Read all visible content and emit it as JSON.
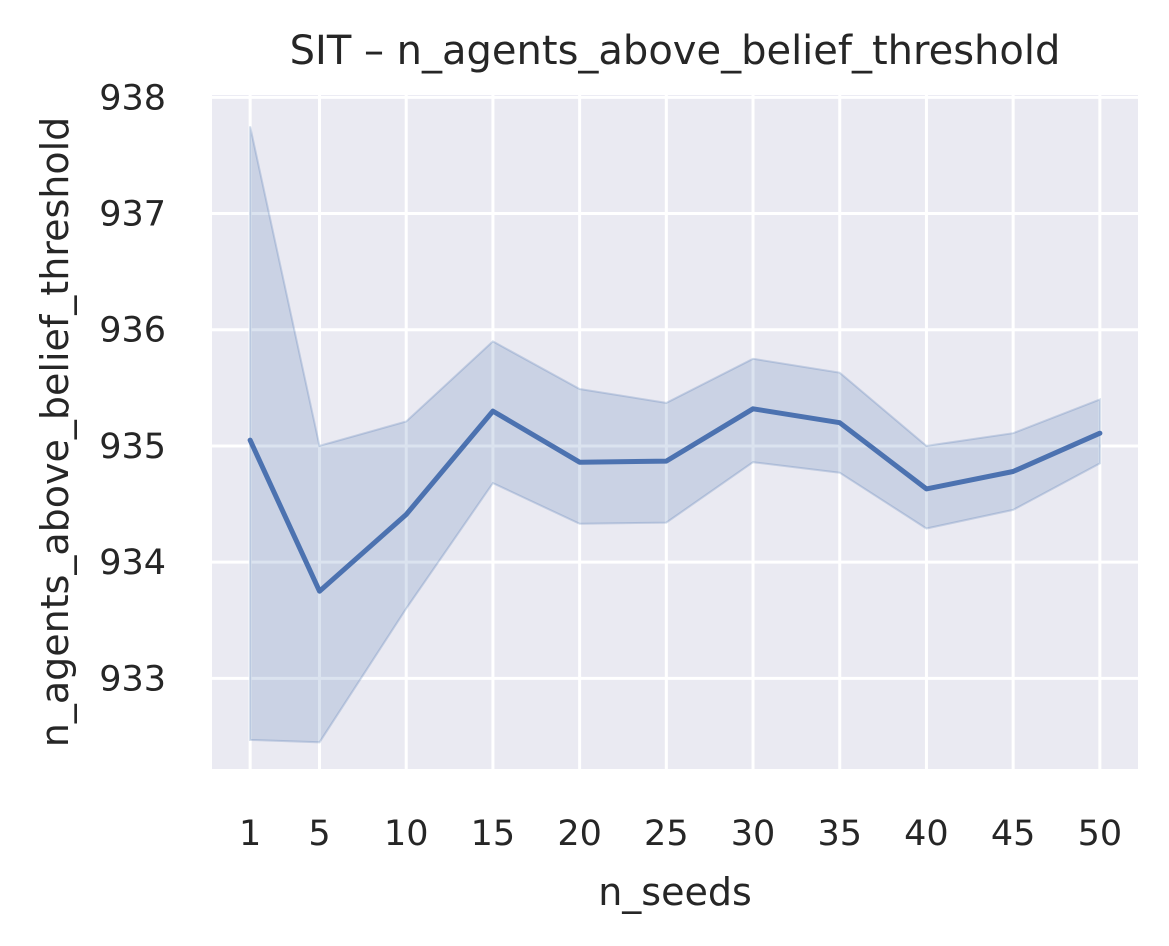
{
  "chart_data": {
    "type": "line",
    "title": "SIT – n_agents_above_belief_threshold",
    "xlabel": "n_seeds",
    "ylabel": "n_agents_above_belief_threshold",
    "x": [
      1,
      5,
      10,
      15,
      20,
      25,
      30,
      35,
      40,
      45,
      50
    ],
    "x_tick_labels": [
      "1",
      "5",
      "10",
      "15",
      "20",
      "25",
      "30",
      "35",
      "40",
      "45",
      "50"
    ],
    "y_ticks": [
      933,
      934,
      935,
      936,
      937,
      938
    ],
    "y_tick_labels": [
      "933",
      "934",
      "935",
      "936",
      "937",
      "938"
    ],
    "xlim": [
      -1.2,
      52.2
    ],
    "ylim": [
      932.22,
      938.02
    ],
    "grid": true,
    "legend": "none",
    "series": [
      {
        "values": [
          935.05,
          933.75,
          934.41,
          935.3,
          934.86,
          934.87,
          935.32,
          935.2,
          934.63,
          934.78,
          935.11
        ],
        "ci_lower": [
          932.47,
          932.45,
          933.6,
          934.68,
          934.33,
          934.34,
          934.86,
          934.77,
          934.29,
          934.45,
          934.85
        ],
        "ci_upper": [
          937.75,
          935.0,
          935.21,
          935.9,
          935.49,
          935.37,
          935.75,
          935.63,
          935.0,
          935.11,
          935.4
        ],
        "color": "#4c72b0",
        "band_color": "#4c72b0"
      }
    ],
    "colors": {
      "plot_background": "#eaeaf2",
      "grid": "#ffffff",
      "text": "#262626"
    }
  }
}
